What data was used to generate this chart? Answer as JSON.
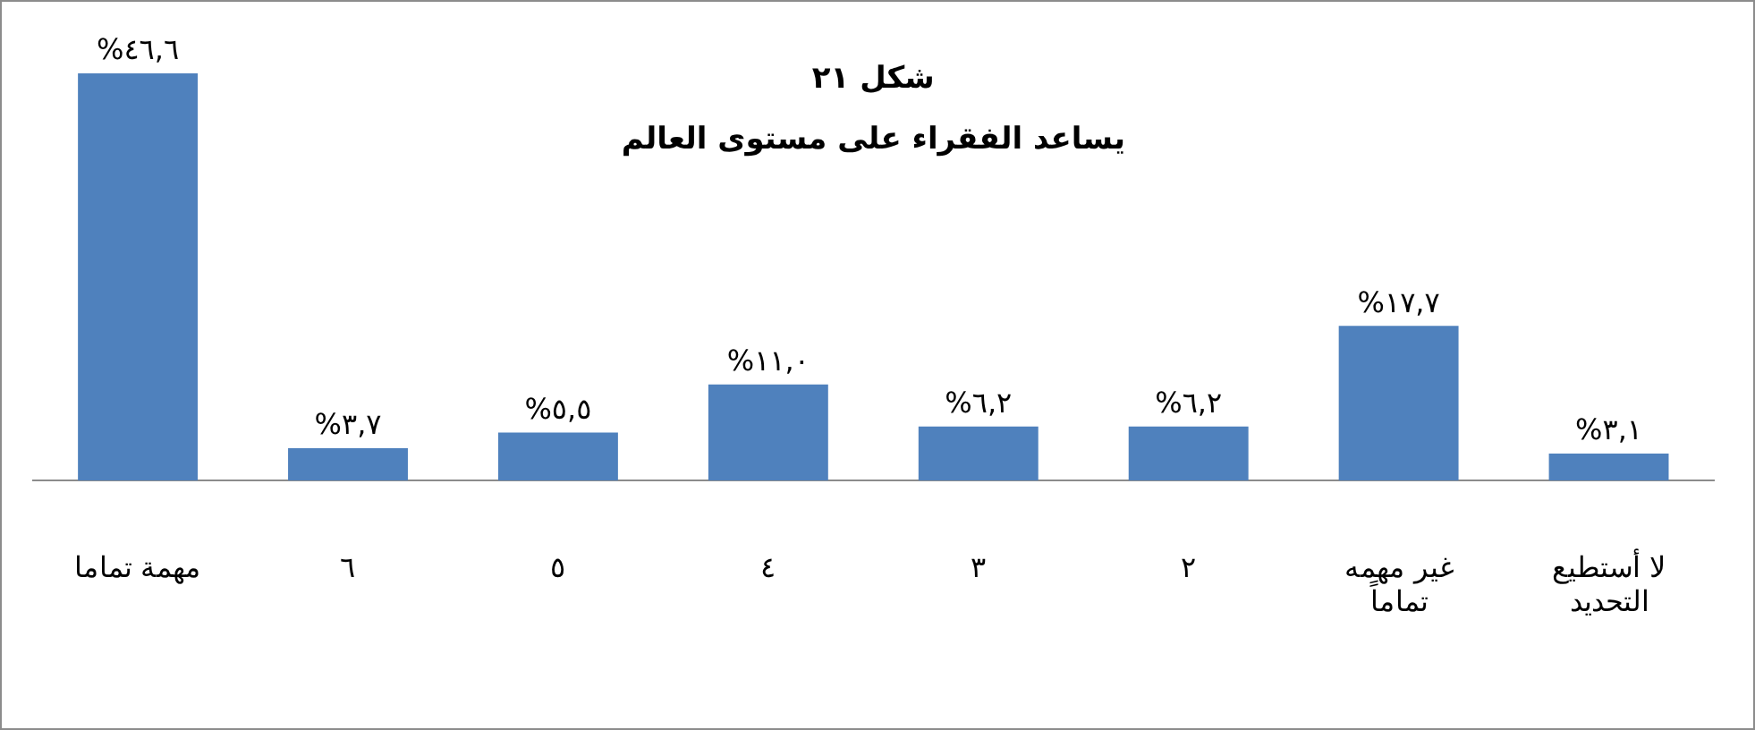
{
  "chart_data": {
    "type": "bar",
    "title": "شكل ٢١",
    "subtitle": "يساعد الفقراء على مستوى العالم",
    "categories": [
      "مهمة تماما",
      "٦",
      "٥",
      "٤",
      "٣",
      "٢",
      "غير مهمه\nتماماً",
      "لا أستطيع\nالتحديد"
    ],
    "values": [
      46.6,
      3.7,
      5.5,
      11.0,
      6.2,
      6.2,
      17.7,
      3.1
    ],
    "value_labels": [
      "%٤٦,٦",
      "%٣,٧",
      "%٥,٥",
      "%١١,٠",
      "%٦,٢",
      "%٦,٢",
      "%١٧,٧",
      "%٣,١"
    ],
    "color": "#4f81bd",
    "grid": false,
    "legend": false
  }
}
